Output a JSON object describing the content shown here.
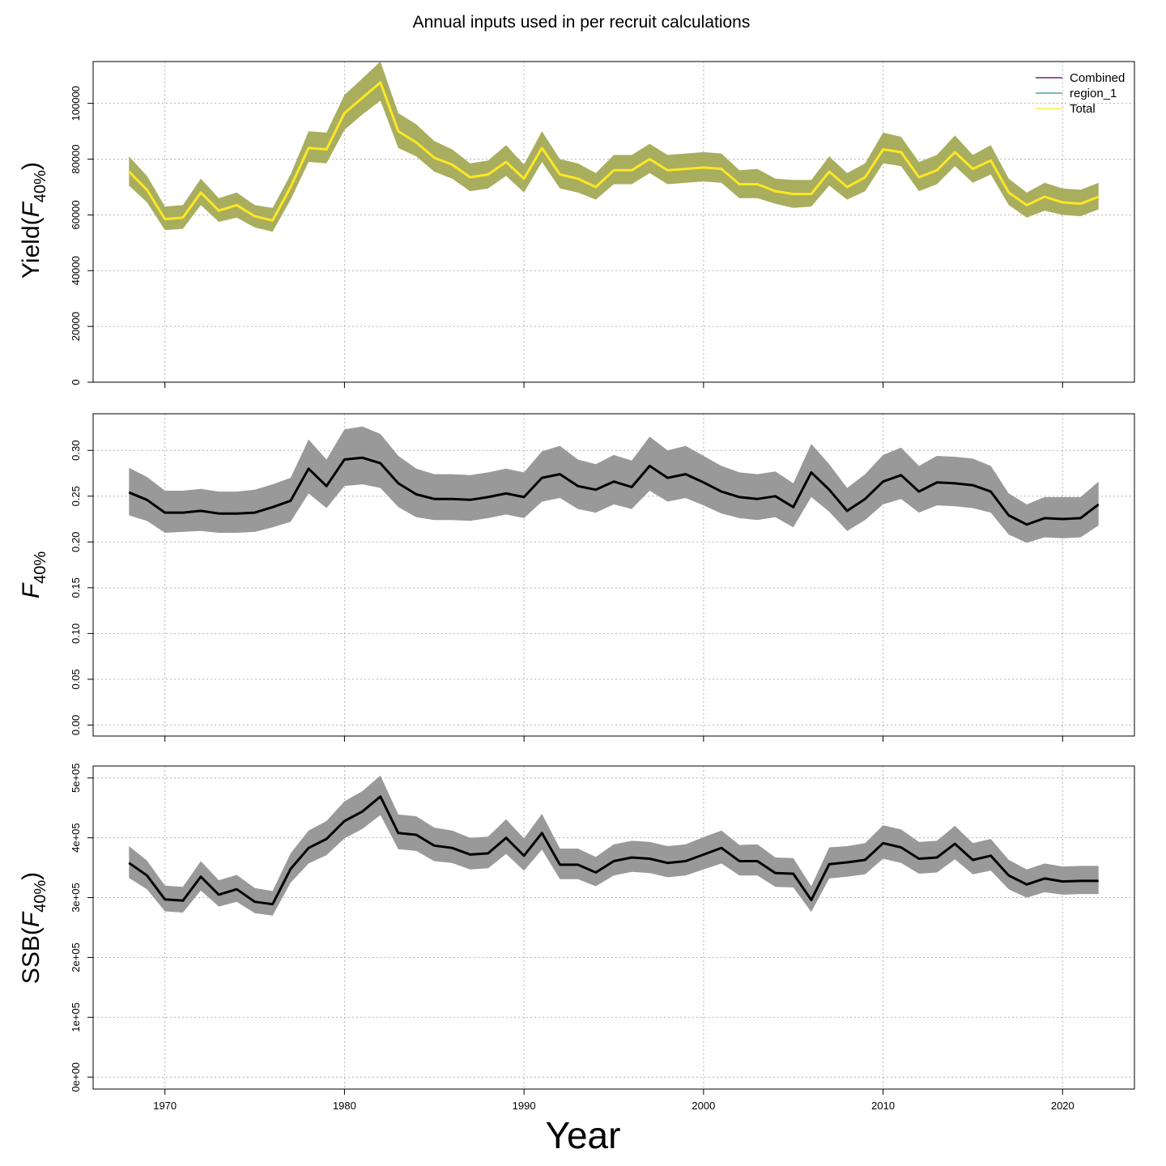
{
  "title": "Annual inputs used in per recruit calculations",
  "xlabel": "Year",
  "legend": {
    "entries": [
      {
        "label": "Combined",
        "color": "#440154"
      },
      {
        "label": "region_1",
        "color": "#21908C"
      },
      {
        "label": "Total",
        "color": "#FDE725"
      }
    ]
  },
  "chart_data": [
    {
      "type": "line",
      "panel": "yield",
      "ylabel_main": "Yield(",
      "ylabel_F": "F",
      "ylabel_sub": "40%",
      "ylabel_close": ")",
      "line_color": "#FDE725",
      "band_color": "#A8AE5E",
      "xlim": [
        1966,
        2024
      ],
      "ylim": [
        0,
        115000
      ],
      "yticks": [
        0,
        20000,
        40000,
        60000,
        80000,
        100000
      ],
      "ytick_labels": [
        "0",
        "20000",
        "40000",
        "60000",
        "80000",
        "100000"
      ],
      "xticks": [
        1970,
        1980,
        1990,
        2000,
        2010,
        2020
      ],
      "xtick_labels": [],
      "grid": true,
      "legend": "top-right",
      "x": [
        1968,
        1969,
        1970,
        1971,
        1972,
        1973,
        1974,
        1975,
        1976,
        1977,
        1978,
        1979,
        1980,
        1981,
        1982,
        1983,
        1984,
        1985,
        1986,
        1987,
        1988,
        1989,
        1990,
        1991,
        1992,
        1993,
        1994,
        1995,
        1996,
        1997,
        1998,
        1999,
        2000,
        2001,
        2002,
        2003,
        2004,
        2005,
        2006,
        2007,
        2008,
        2009,
        2010,
        2011,
        2012,
        2013,
        2014,
        2015,
        2016,
        2017,
        2018,
        2019,
        2020,
        2021,
        2022
      ],
      "series": [
        {
          "name": "Total",
          "values": [
            75500,
            69000,
            58500,
            59000,
            68000,
            61500,
            63500,
            59500,
            58000,
            70000,
            84000,
            83500,
            96500,
            102000,
            107500,
            90000,
            86000,
            80500,
            78000,
            73500,
            74500,
            79000,
            73000,
            84000,
            74500,
            73000,
            70000,
            76000,
            76000,
            80000,
            76000,
            76500,
            77000,
            76500,
            71000,
            71000,
            68500,
            67500,
            67500,
            75500,
            70000,
            73500,
            83500,
            82500,
            73500,
            76000,
            82500,
            76500,
            79500,
            68000,
            63500,
            66500,
            64500,
            64000,
            66500
          ]
        }
      ],
      "lower": [
        70500,
        64500,
        54500,
        55000,
        63500,
        57500,
        59000,
        55500,
        54000,
        65500,
        79000,
        78500,
        90500,
        96000,
        101000,
        84000,
        81000,
        75500,
        73000,
        68500,
        69500,
        74000,
        68000,
        79000,
        69500,
        68000,
        65500,
        71000,
        71000,
        75000,
        71000,
        71500,
        72000,
        71500,
        66000,
        66000,
        64000,
        62500,
        63000,
        70500,
        65500,
        68500,
        78500,
        77500,
        68500,
        71000,
        77500,
        71500,
        74500,
        63500,
        59000,
        61500,
        60000,
        59500,
        62000
      ],
      "upper": [
        81000,
        74000,
        63000,
        63500,
        73000,
        66000,
        68000,
        63500,
        62500,
        74500,
        90000,
        89500,
        103000,
        109000,
        115000,
        96500,
        92500,
        86500,
        83500,
        78500,
        79500,
        85000,
        78000,
        90000,
        80000,
        78500,
        75000,
        81500,
        81500,
        85500,
        81500,
        82000,
        82500,
        82000,
        76000,
        76500,
        73000,
        72500,
        72500,
        81000,
        75000,
        78500,
        89500,
        88000,
        79000,
        81500,
        88500,
        81500,
        85000,
        73000,
        68000,
        71500,
        69500,
        69000,
        71500
      ]
    },
    {
      "type": "line",
      "panel": "f40",
      "ylabel_F": "F",
      "ylabel_sub": "40%",
      "line_color": "#000000",
      "band_color": "#999999",
      "xlim": [
        1966,
        2024
      ],
      "ylim": [
        -0.012,
        0.34
      ],
      "yticks": [
        0,
        0.05,
        0.1,
        0.15,
        0.2,
        0.25,
        0.3
      ],
      "ytick_labels": [
        "0.00",
        "0.05",
        "0.10",
        "0.15",
        "0.20",
        "0.25",
        "0.30"
      ],
      "xticks": [
        1970,
        1980,
        1990,
        2000,
        2010,
        2020
      ],
      "xtick_labels": [],
      "grid": true,
      "x": [
        1968,
        1969,
        1970,
        1971,
        1972,
        1973,
        1974,
        1975,
        1976,
        1977,
        1978,
        1979,
        1980,
        1981,
        1982,
        1983,
        1984,
        1985,
        1986,
        1987,
        1988,
        1989,
        1990,
        1991,
        1992,
        1993,
        1994,
        1995,
        1996,
        1997,
        1998,
        1999,
        2000,
        2001,
        2002,
        2003,
        2004,
        2005,
        2006,
        2007,
        2008,
        2009,
        2010,
        2011,
        2012,
        2013,
        2014,
        2015,
        2016,
        2017,
        2018,
        2019,
        2020,
        2021,
        2022
      ],
      "series": [
        {
          "values": [
            0.254,
            0.246,
            0.232,
            0.232,
            0.234,
            0.231,
            0.231,
            0.232,
            0.238,
            0.245,
            0.28,
            0.261,
            0.29,
            0.292,
            0.286,
            0.264,
            0.252,
            0.247,
            0.247,
            0.246,
            0.249,
            0.253,
            0.249,
            0.27,
            0.274,
            0.261,
            0.257,
            0.266,
            0.26,
            0.283,
            0.27,
            0.274,
            0.265,
            0.255,
            0.249,
            0.247,
            0.25,
            0.238,
            0.276,
            0.257,
            0.234,
            0.247,
            0.266,
            0.273,
            0.255,
            0.265,
            0.264,
            0.262,
            0.255,
            0.229,
            0.219,
            0.226,
            0.225,
            0.226,
            0.241
          ]
        }
      ],
      "lower": [
        0.229,
        0.223,
        0.21,
        0.211,
        0.212,
        0.21,
        0.21,
        0.211,
        0.216,
        0.222,
        0.253,
        0.237,
        0.261,
        0.263,
        0.259,
        0.238,
        0.227,
        0.224,
        0.224,
        0.223,
        0.226,
        0.23,
        0.226,
        0.244,
        0.248,
        0.236,
        0.232,
        0.241,
        0.236,
        0.256,
        0.244,
        0.248,
        0.24,
        0.231,
        0.226,
        0.224,
        0.227,
        0.216,
        0.249,
        0.233,
        0.212,
        0.224,
        0.241,
        0.247,
        0.232,
        0.24,
        0.239,
        0.237,
        0.232,
        0.208,
        0.199,
        0.205,
        0.204,
        0.205,
        0.218
      ],
      "upper": [
        0.281,
        0.271,
        0.256,
        0.256,
        0.258,
        0.255,
        0.255,
        0.257,
        0.263,
        0.27,
        0.312,
        0.29,
        0.323,
        0.326,
        0.318,
        0.294,
        0.28,
        0.274,
        0.274,
        0.273,
        0.276,
        0.28,
        0.276,
        0.299,
        0.305,
        0.29,
        0.285,
        0.295,
        0.289,
        0.315,
        0.3,
        0.305,
        0.294,
        0.283,
        0.276,
        0.274,
        0.277,
        0.264,
        0.307,
        0.285,
        0.259,
        0.274,
        0.295,
        0.303,
        0.283,
        0.294,
        0.293,
        0.291,
        0.283,
        0.253,
        0.241,
        0.249,
        0.249,
        0.249,
        0.266
      ]
    },
    {
      "type": "line",
      "panel": "ssb",
      "ylabel_main": "SSB(",
      "ylabel_F": "F",
      "ylabel_sub": "40%",
      "ylabel_close": ")",
      "line_color": "#000000",
      "band_color": "#999999",
      "xlim": [
        1966,
        2024
      ],
      "ylim": [
        -20000,
        520000
      ],
      "yticks": [
        0,
        100000,
        200000,
        300000,
        400000,
        500000
      ],
      "ytick_labels": [
        "0e+00",
        "1e+05",
        "2e+05",
        "3e+05",
        "4e+05",
        "5e+05"
      ],
      "xticks": [
        1970,
        1980,
        1990,
        2000,
        2010,
        2020
      ],
      "xtick_labels": [
        "1970",
        "1980",
        "1990",
        "2000",
        "2010",
        "2020"
      ],
      "grid": true,
      "x": [
        1968,
        1969,
        1970,
        1971,
        1972,
        1973,
        1974,
        1975,
        1976,
        1977,
        1978,
        1979,
        1980,
        1981,
        1982,
        1983,
        1984,
        1985,
        1986,
        1987,
        1988,
        1989,
        1990,
        1991,
        1992,
        1993,
        1994,
        1995,
        1996,
        1997,
        1998,
        1999,
        2000,
        2001,
        2002,
        2003,
        2004,
        2005,
        2006,
        2007,
        2008,
        2009,
        2010,
        2011,
        2012,
        2013,
        2014,
        2015,
        2016,
        2017,
        2018,
        2019,
        2020,
        2021,
        2022
      ],
      "series": [
        {
          "values": [
            358000,
            337000,
            297000,
            295000,
            335000,
            305000,
            314000,
            293000,
            289000,
            348000,
            383000,
            398000,
            428000,
            444000,
            469000,
            408000,
            405000,
            387000,
            383000,
            372000,
            374000,
            400000,
            370000,
            408000,
            355000,
            355000,
            342000,
            361000,
            367000,
            365000,
            358000,
            361000,
            372000,
            383000,
            361000,
            361000,
            341000,
            340000,
            296000,
            356000,
            359000,
            363000,
            391000,
            384000,
            365000,
            367000,
            390000,
            363000,
            370000,
            337000,
            322000,
            332000,
            327000,
            328000,
            328000
          ]
        }
      ],
      "lower": [
        333000,
        314000,
        277000,
        275000,
        312000,
        285000,
        293000,
        274000,
        270000,
        325000,
        357000,
        371000,
        399000,
        415000,
        438000,
        381000,
        378000,
        361000,
        358000,
        347000,
        349000,
        373000,
        345000,
        380000,
        331000,
        331000,
        319000,
        337000,
        343000,
        341000,
        334000,
        337000,
        347000,
        357000,
        337000,
        337000,
        318000,
        317000,
        276000,
        332000,
        335000,
        339000,
        365000,
        358000,
        340000,
        342000,
        364000,
        339000,
        345000,
        314000,
        300000,
        309000,
        305000,
        306000,
        306000
      ],
      "upper": [
        386000,
        362000,
        320000,
        318000,
        361000,
        329000,
        338000,
        316000,
        311000,
        374000,
        412000,
        428000,
        461000,
        478000,
        504000,
        439000,
        436000,
        417000,
        412000,
        400000,
        402000,
        431000,
        399000,
        440000,
        382000,
        382000,
        368000,
        389000,
        395000,
        393000,
        386000,
        389000,
        401000,
        412000,
        388000,
        389000,
        367000,
        366000,
        319000,
        384000,
        386000,
        391000,
        421000,
        414000,
        393000,
        395000,
        420000,
        391000,
        398000,
        363000,
        347000,
        357000,
        352000,
        353000,
        353000
      ]
    }
  ]
}
